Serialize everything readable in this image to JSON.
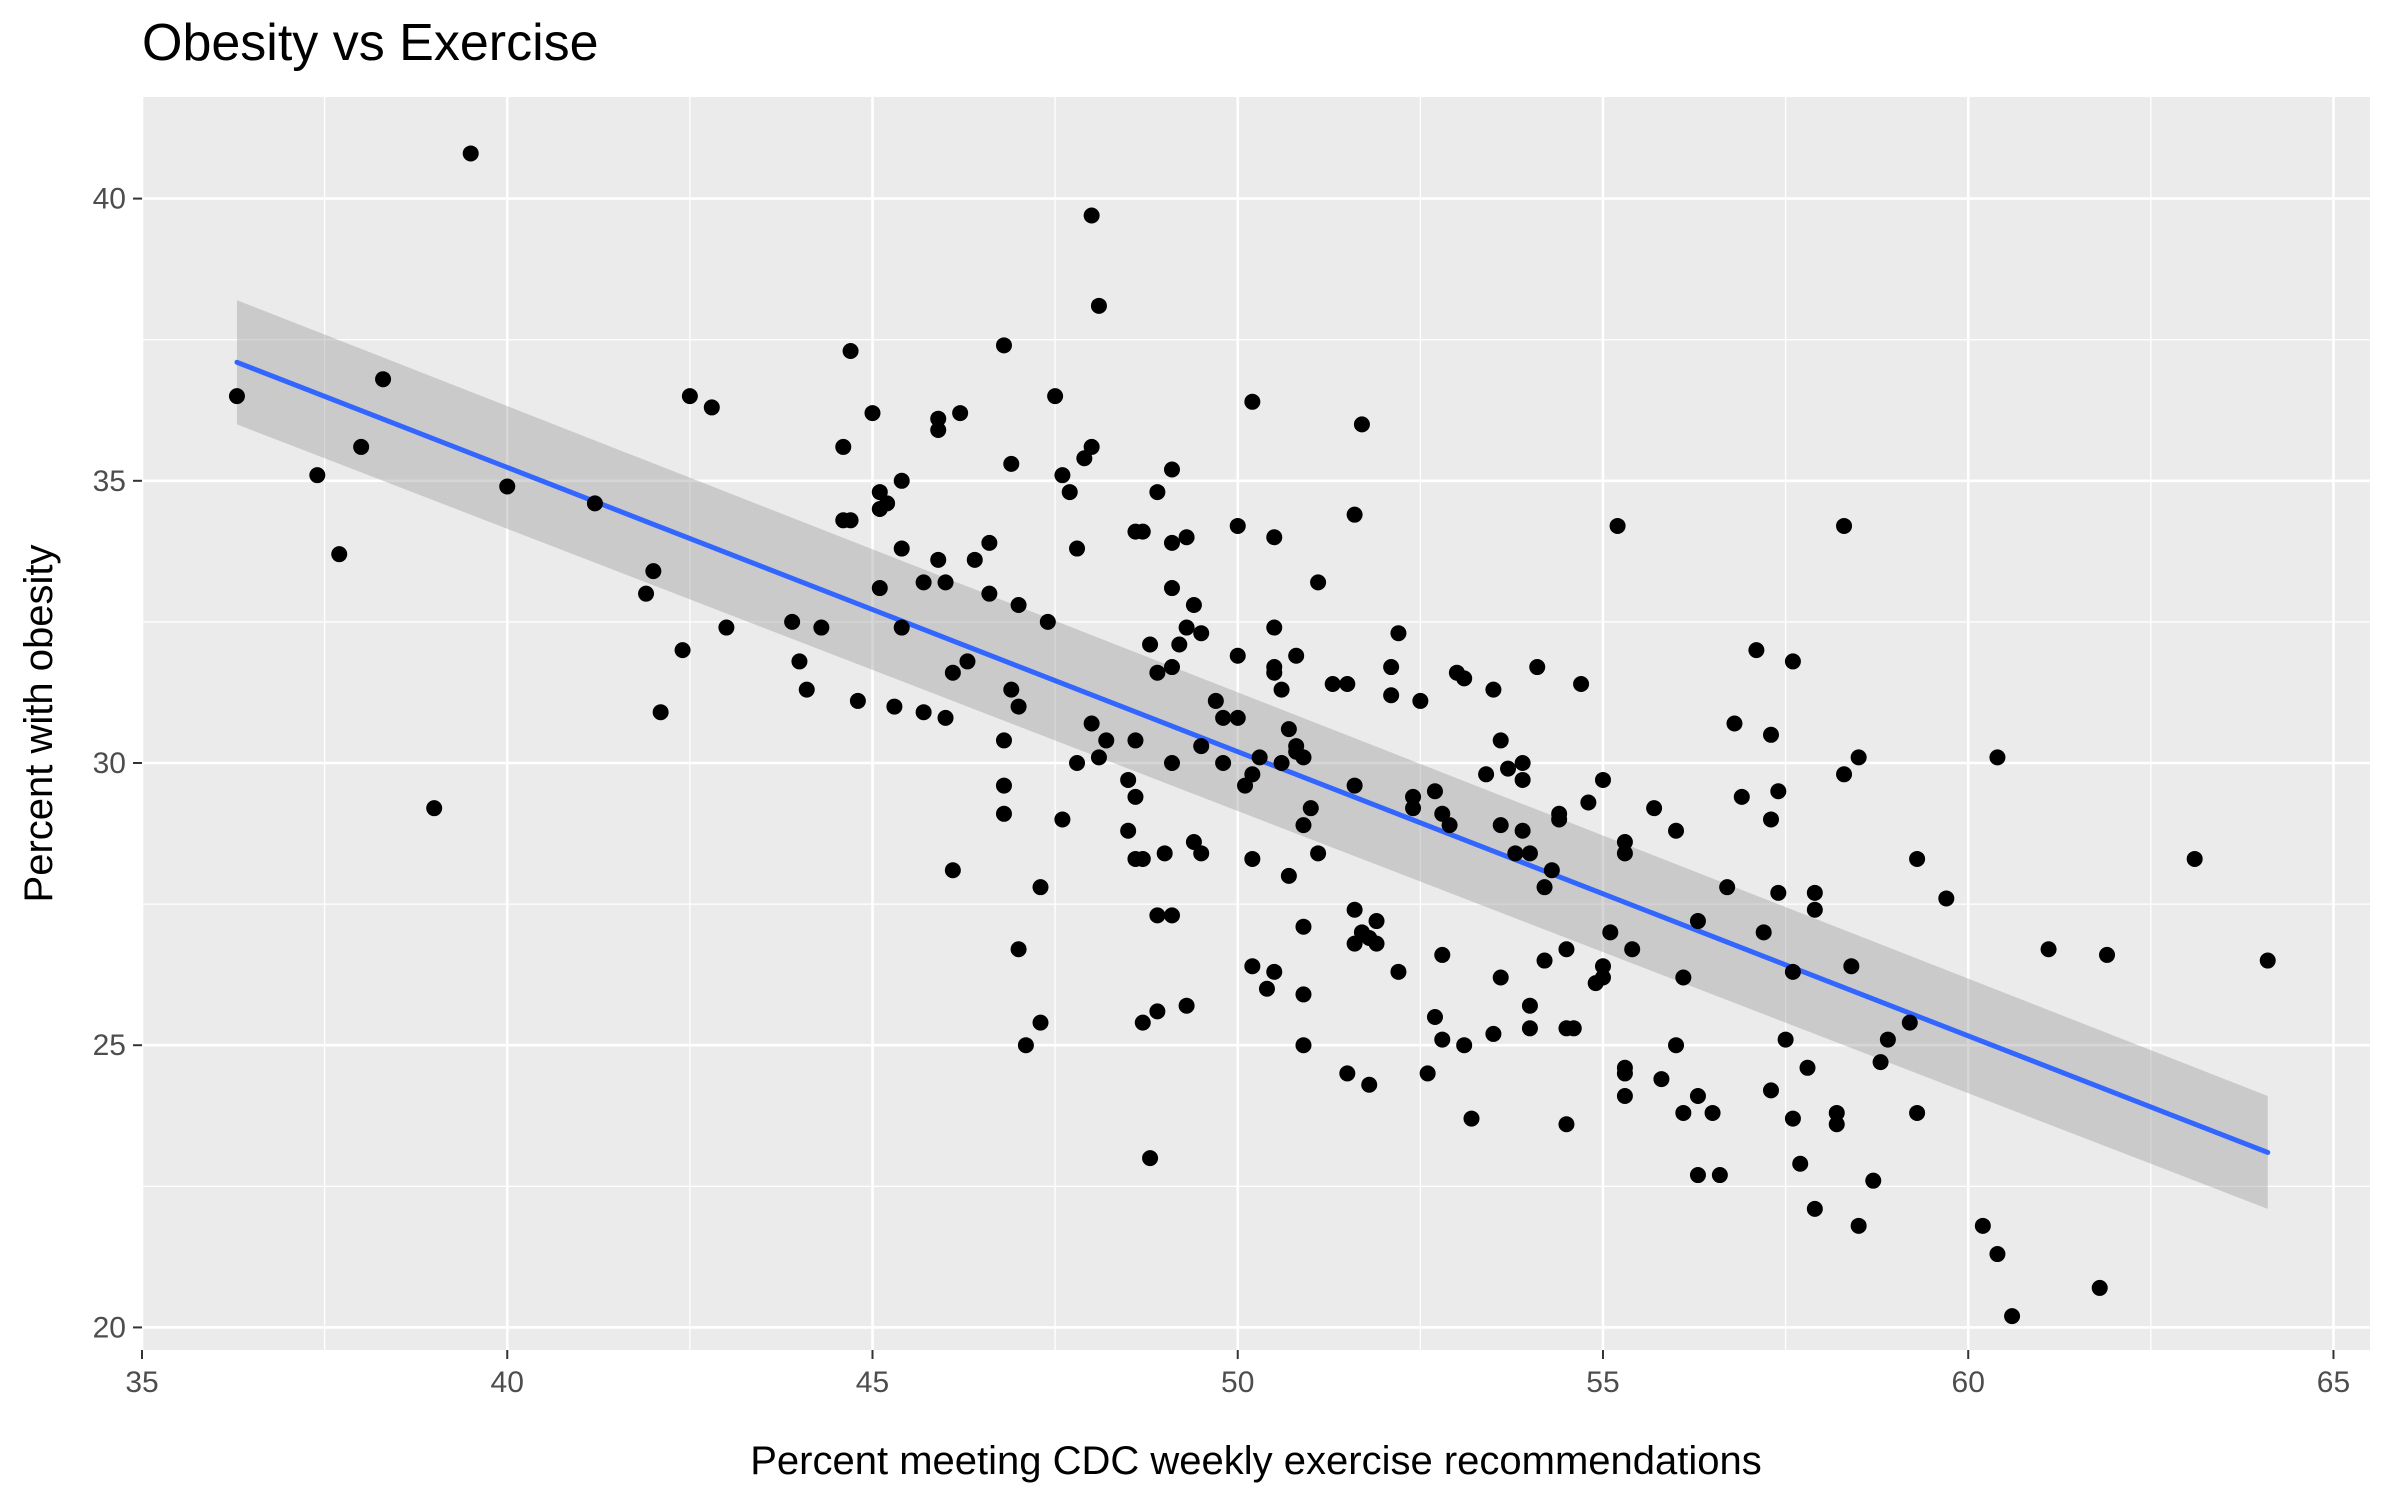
{
  "colors": {
    "panel_background": "#ebebeb",
    "grid_major": "#ffffff",
    "tick_mark": "#333333",
    "points": "#000000",
    "fit_line": "#3366ff",
    "confidence_band": "#999999"
  },
  "chart_data": {
    "type": "scatter",
    "title": "Obesity vs Exercise",
    "xlabel": "Percent meeting CDC weekly exercise recommendations",
    "ylabel": "Percent with obesity",
    "xlim": [
      35,
      65.5
    ],
    "ylim": [
      19.6,
      41.8
    ],
    "x_ticks": [
      35,
      40,
      45,
      50,
      55,
      60,
      65
    ],
    "y_ticks": [
      20,
      25,
      30,
      35,
      40
    ],
    "grid": true,
    "legend": "none",
    "trend_line": {
      "method": "linear",
      "x_range": [
        36.3,
        64.1
      ],
      "y_at_start": 37.1,
      "y_at_end": 23.1,
      "band_at_start": [
        36.0,
        38.2
      ],
      "band_at_end": [
        22.1,
        24.1
      ]
    },
    "points": [
      [
        36.3,
        36.5
      ],
      [
        37.4,
        35.1
      ],
      [
        37.7,
        33.7
      ],
      [
        38.0,
        35.6
      ],
      [
        38.3,
        36.8
      ],
      [
        39.0,
        29.2
      ],
      [
        39.5,
        40.8
      ],
      [
        40.0,
        34.9
      ],
      [
        41.2,
        34.6
      ],
      [
        41.9,
        33.0
      ],
      [
        42.0,
        33.4
      ],
      [
        42.1,
        30.9
      ],
      [
        42.4,
        32.0
      ],
      [
        42.5,
        36.5
      ],
      [
        42.8,
        36.3
      ],
      [
        43.0,
        32.4
      ],
      [
        43.9,
        32.5
      ],
      [
        44.0,
        31.8
      ],
      [
        44.1,
        31.3
      ],
      [
        44.3,
        32.4
      ],
      [
        44.6,
        35.6
      ],
      [
        44.6,
        34.3
      ],
      [
        44.7,
        34.3
      ],
      [
        44.7,
        37.3
      ],
      [
        44.8,
        31.1
      ],
      [
        45.0,
        36.2
      ],
      [
        45.1,
        34.8
      ],
      [
        45.1,
        34.5
      ],
      [
        45.2,
        34.6
      ],
      [
        45.1,
        33.1
      ],
      [
        45.3,
        31.0
      ],
      [
        45.4,
        35.0
      ],
      [
        45.4,
        33.8
      ],
      [
        45.4,
        32.4
      ],
      [
        45.7,
        30.9
      ],
      [
        45.7,
        33.2
      ],
      [
        45.9,
        33.6
      ],
      [
        45.9,
        36.1
      ],
      [
        45.9,
        35.9
      ],
      [
        46.0,
        33.2
      ],
      [
        46.0,
        30.8
      ],
      [
        46.1,
        28.1
      ],
      [
        46.1,
        31.6
      ],
      [
        46.2,
        36.2
      ],
      [
        46.3,
        31.8
      ],
      [
        46.4,
        33.6
      ],
      [
        46.6,
        33.9
      ],
      [
        46.6,
        33.0
      ],
      [
        46.8,
        37.4
      ],
      [
        46.8,
        30.4
      ],
      [
        46.8,
        29.6
      ],
      [
        46.8,
        29.1
      ],
      [
        46.9,
        35.3
      ],
      [
        46.9,
        31.3
      ],
      [
        47.0,
        32.8
      ],
      [
        47.0,
        31.0
      ],
      [
        47.0,
        26.7
      ],
      [
        47.1,
        25.0
      ],
      [
        47.3,
        27.8
      ],
      [
        47.3,
        25.4
      ],
      [
        47.4,
        32.5
      ],
      [
        47.5,
        36.5
      ],
      [
        47.6,
        35.1
      ],
      [
        47.6,
        29.0
      ],
      [
        47.7,
        34.8
      ],
      [
        47.8,
        33.8
      ],
      [
        47.8,
        30.0
      ],
      [
        47.9,
        35.4
      ],
      [
        48.0,
        35.6
      ],
      [
        48.0,
        39.7
      ],
      [
        48.0,
        30.7
      ],
      [
        48.1,
        38.1
      ],
      [
        48.1,
        30.1
      ],
      [
        48.2,
        30.4
      ],
      [
        48.5,
        29.7
      ],
      [
        48.5,
        28.8
      ],
      [
        48.6,
        34.1
      ],
      [
        48.6,
        30.4
      ],
      [
        48.6,
        29.4
      ],
      [
        48.6,
        28.3
      ],
      [
        48.7,
        34.1
      ],
      [
        48.7,
        28.3
      ],
      [
        48.7,
        25.4
      ],
      [
        48.8,
        32.1
      ],
      [
        48.8,
        23.0
      ],
      [
        48.9,
        34.8
      ],
      [
        48.9,
        31.6
      ],
      [
        48.9,
        27.3
      ],
      [
        48.9,
        25.6
      ],
      [
        49.0,
        28.4
      ],
      [
        49.1,
        35.2
      ],
      [
        49.1,
        33.9
      ],
      [
        49.1,
        33.1
      ],
      [
        49.1,
        31.7
      ],
      [
        49.1,
        30.0
      ],
      [
        49.1,
        27.3
      ],
      [
        49.2,
        32.1
      ],
      [
        49.3,
        34.0
      ],
      [
        49.3,
        32.4
      ],
      [
        49.3,
        25.7
      ],
      [
        49.4,
        32.8
      ],
      [
        49.4,
        28.6
      ],
      [
        49.5,
        32.3
      ],
      [
        49.5,
        30.3
      ],
      [
        49.5,
        28.4
      ],
      [
        49.7,
        31.1
      ],
      [
        49.8,
        30.8
      ],
      [
        49.8,
        30.0
      ],
      [
        50.0,
        34.2
      ],
      [
        50.0,
        31.9
      ],
      [
        50.0,
        30.8
      ],
      [
        50.1,
        29.6
      ],
      [
        50.2,
        36.4
      ],
      [
        50.2,
        29.8
      ],
      [
        50.2,
        28.3
      ],
      [
        50.2,
        26.4
      ],
      [
        50.3,
        30.1
      ],
      [
        50.4,
        26.0
      ],
      [
        50.5,
        34.0
      ],
      [
        50.5,
        32.4
      ],
      [
        50.5,
        31.7
      ],
      [
        50.5,
        31.6
      ],
      [
        50.5,
        26.3
      ],
      [
        50.6,
        31.3
      ],
      [
        50.6,
        30.0
      ],
      [
        50.7,
        30.6
      ],
      [
        50.7,
        28.0
      ],
      [
        50.8,
        31.9
      ],
      [
        50.8,
        30.3
      ],
      [
        50.8,
        30.2
      ],
      [
        50.9,
        30.1
      ],
      [
        50.9,
        28.9
      ],
      [
        50.9,
        27.1
      ],
      [
        50.9,
        25.9
      ],
      [
        50.9,
        25.0
      ],
      [
        51.0,
        29.2
      ],
      [
        51.1,
        33.2
      ],
      [
        51.1,
        28.4
      ],
      [
        51.3,
        31.4
      ],
      [
        51.5,
        31.4
      ],
      [
        51.5,
        24.5
      ],
      [
        51.6,
        34.4
      ],
      [
        51.6,
        29.6
      ],
      [
        51.6,
        27.4
      ],
      [
        51.6,
        26.8
      ],
      [
        51.7,
        36.0
      ],
      [
        51.7,
        27.0
      ],
      [
        51.8,
        26.9
      ],
      [
        51.8,
        24.3
      ],
      [
        51.9,
        27.2
      ],
      [
        51.9,
        26.8
      ],
      [
        52.1,
        31.7
      ],
      [
        52.1,
        31.2
      ],
      [
        52.2,
        32.3
      ],
      [
        52.2,
        26.3
      ],
      [
        52.4,
        29.4
      ],
      [
        52.4,
        29.2
      ],
      [
        52.5,
        31.1
      ],
      [
        52.6,
        24.5
      ],
      [
        52.7,
        29.5
      ],
      [
        52.7,
        25.5
      ],
      [
        52.8,
        29.1
      ],
      [
        52.8,
        26.6
      ],
      [
        52.8,
        25.1
      ],
      [
        52.9,
        28.9
      ],
      [
        53.0,
        31.6
      ],
      [
        53.1,
        31.5
      ],
      [
        53.1,
        25.0
      ],
      [
        53.2,
        23.7
      ],
      [
        53.4,
        29.8
      ],
      [
        53.5,
        31.3
      ],
      [
        53.5,
        25.2
      ],
      [
        53.6,
        30.4
      ],
      [
        53.6,
        28.9
      ],
      [
        53.6,
        26.2
      ],
      [
        53.7,
        29.9
      ],
      [
        53.8,
        28.4
      ],
      [
        53.9,
        30.0
      ],
      [
        53.9,
        29.7
      ],
      [
        53.9,
        28.8
      ],
      [
        54.0,
        28.4
      ],
      [
        54.0,
        25.7
      ],
      [
        54.0,
        25.3
      ],
      [
        54.1,
        31.7
      ],
      [
        54.2,
        27.8
      ],
      [
        54.2,
        26.5
      ],
      [
        54.3,
        28.1
      ],
      [
        54.4,
        29.1
      ],
      [
        54.4,
        29.0
      ],
      [
        54.5,
        26.7
      ],
      [
        54.5,
        25.3
      ],
      [
        54.5,
        23.6
      ],
      [
        54.6,
        25.3
      ],
      [
        54.7,
        31.4
      ],
      [
        54.8,
        29.3
      ],
      [
        54.9,
        26.1
      ],
      [
        55.0,
        29.7
      ],
      [
        55.0,
        26.4
      ],
      [
        55.0,
        26.2
      ],
      [
        55.1,
        27.0
      ],
      [
        55.2,
        34.2
      ],
      [
        55.3,
        28.6
      ],
      [
        55.3,
        28.4
      ],
      [
        55.3,
        24.6
      ],
      [
        55.3,
        24.5
      ],
      [
        55.3,
        24.1
      ],
      [
        55.4,
        26.7
      ],
      [
        55.7,
        29.2
      ],
      [
        55.8,
        24.4
      ],
      [
        56.0,
        28.8
      ],
      [
        56.0,
        25.0
      ],
      [
        56.1,
        26.2
      ],
      [
        56.1,
        23.8
      ],
      [
        56.3,
        27.2
      ],
      [
        56.3,
        24.1
      ],
      [
        56.3,
        22.7
      ],
      [
        56.5,
        23.8
      ],
      [
        56.6,
        22.7
      ],
      [
        56.7,
        27.8
      ],
      [
        56.8,
        30.7
      ],
      [
        56.9,
        29.4
      ],
      [
        57.1,
        32.0
      ],
      [
        57.2,
        27.0
      ],
      [
        57.3,
        30.5
      ],
      [
        57.3,
        29.0
      ],
      [
        57.3,
        24.2
      ],
      [
        57.4,
        29.5
      ],
      [
        57.4,
        27.7
      ],
      [
        57.5,
        25.1
      ],
      [
        57.6,
        31.8
      ],
      [
        57.6,
        26.3
      ],
      [
        57.6,
        23.7
      ],
      [
        57.7,
        22.9
      ],
      [
        57.8,
        24.6
      ],
      [
        57.9,
        27.7
      ],
      [
        57.9,
        27.4
      ],
      [
        57.9,
        22.1
      ],
      [
        58.2,
        23.8
      ],
      [
        58.2,
        23.6
      ],
      [
        58.3,
        34.2
      ],
      [
        58.3,
        29.8
      ],
      [
        58.4,
        26.4
      ],
      [
        58.5,
        30.1
      ],
      [
        58.5,
        21.8
      ],
      [
        58.7,
        22.6
      ],
      [
        58.8,
        24.7
      ],
      [
        58.9,
        25.1
      ],
      [
        59.2,
        25.4
      ],
      [
        59.3,
        28.3
      ],
      [
        59.3,
        23.8
      ],
      [
        59.7,
        27.6
      ],
      [
        60.2,
        21.8
      ],
      [
        60.4,
        30.1
      ],
      [
        60.4,
        21.3
      ],
      [
        60.6,
        20.2
      ],
      [
        61.1,
        26.7
      ],
      [
        61.8,
        20.7
      ],
      [
        61.9,
        26.6
      ],
      [
        63.1,
        28.3
      ],
      [
        64.1,
        26.5
      ]
    ]
  }
}
